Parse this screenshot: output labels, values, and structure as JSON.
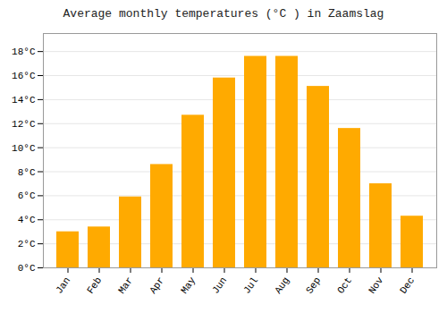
{
  "chart_data": {
    "type": "bar",
    "title": "Average monthly temperatures (°C ) in Zaamslag",
    "categories": [
      "Jan",
      "Feb",
      "Mar",
      "Apr",
      "May",
      "Jun",
      "Jul",
      "Aug",
      "Sep",
      "Oct",
      "Nov",
      "Dec"
    ],
    "values": [
      3.0,
      3.4,
      5.9,
      8.6,
      12.7,
      15.8,
      17.6,
      17.6,
      15.1,
      11.6,
      7.0,
      4.3
    ],
    "color": "#FFAA00",
    "ylim": [
      0,
      19.5
    ],
    "yticks": [
      {
        "value": 0,
        "label": "0°C"
      },
      {
        "value": 2,
        "label": "2°C"
      },
      {
        "value": 4,
        "label": "4°C"
      },
      {
        "value": 6,
        "label": "6°C"
      },
      {
        "value": 8,
        "label": "8°C"
      },
      {
        "value": 10,
        "label": "10°C"
      },
      {
        "value": 12,
        "label": "12°C"
      },
      {
        "value": 14,
        "label": "14°C"
      },
      {
        "value": 16,
        "label": "16°C"
      },
      {
        "value": 18,
        "label": "18°C"
      }
    ],
    "grid": true
  }
}
